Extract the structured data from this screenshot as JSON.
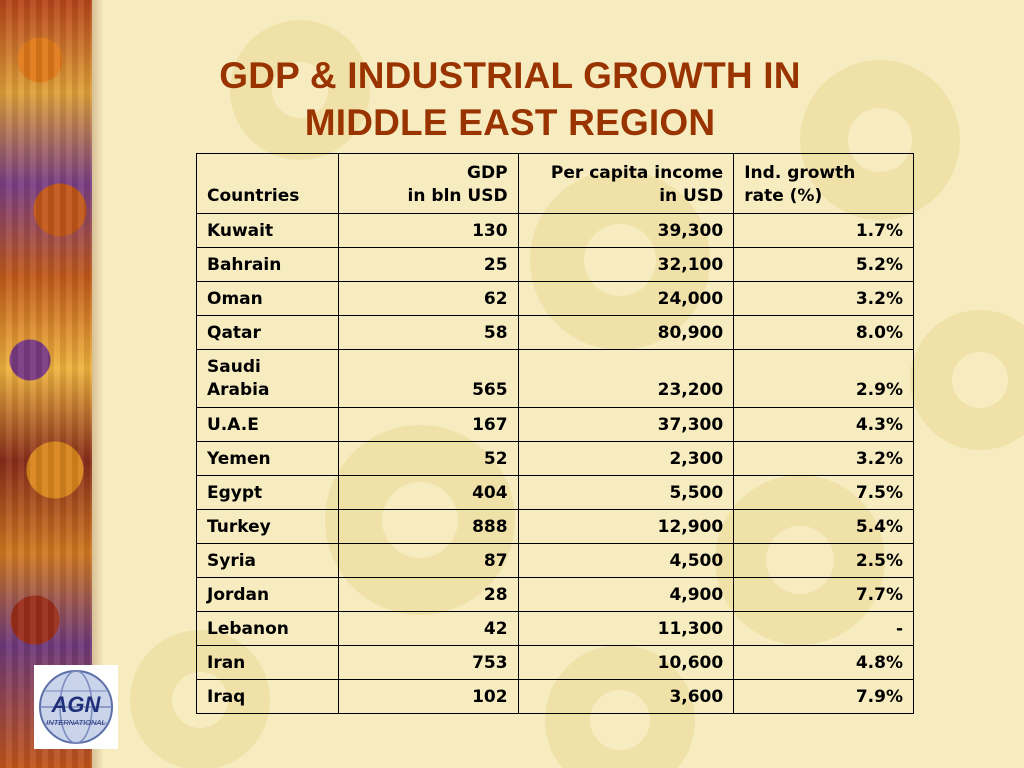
{
  "slide": {
    "title_line1": "GDP & INDUSTRIAL GROWTH IN",
    "title_line2": "MIDDLE EAST REGION"
  },
  "table": {
    "headers": {
      "country": "Countries",
      "gdp_line1": "GDP",
      "gdp_line2": "in bln USD",
      "income_line1": "Per capita income",
      "income_line2": "in USD",
      "growth_line1": "Ind. growth",
      "growth_line2": "rate (%)"
    },
    "rows": [
      {
        "country": "Kuwait",
        "gdp": "130",
        "income": "39,300",
        "growth": "1.7%"
      },
      {
        "country": "Bahrain",
        "gdp": "25",
        "income": "32,100",
        "growth": "5.2%"
      },
      {
        "country": "Oman",
        "gdp": "62",
        "income": "24,000",
        "growth": "3.2%"
      },
      {
        "country": "Qatar",
        "gdp": "58",
        "income": "80,900",
        "growth": "8.0%"
      },
      {
        "country_line1": "Saudi",
        "country_line2": "Arabia",
        "gdp": "565",
        "income": "23,200",
        "growth": "2.9%"
      },
      {
        "country": "U.A.E",
        "gdp": "167",
        "income": "37,300",
        "growth": "4.3%"
      },
      {
        "country": "Yemen",
        "gdp": "52",
        "income": "2,300",
        "growth": "3.2%"
      },
      {
        "country": "Egypt",
        "gdp": "404",
        "income": "5,500",
        "growth": "7.5%"
      },
      {
        "country": "Turkey",
        "gdp": "888",
        "income": "12,900",
        "growth": "5.4%"
      },
      {
        "country": "Syria",
        "gdp": "87",
        "income": "4,500",
        "growth": "2.5%"
      },
      {
        "country": "Jordan",
        "gdp": "28",
        "income": "4,900",
        "growth": "7.7%"
      },
      {
        "country": "Lebanon",
        "gdp": "42",
        "income": "11,300",
        "growth": "-"
      },
      {
        "country": "Iran",
        "gdp": "753",
        "income": "10,600",
        "growth": "4.8%"
      },
      {
        "country": "Iraq",
        "gdp": "102",
        "income": "3,600",
        "growth": "7.9%"
      }
    ]
  },
  "logo": {
    "main_text": "AGN",
    "sub_text": "INTERNATIONAL"
  },
  "colors": {
    "title": "#993300",
    "background": "#f6ecc0"
  }
}
